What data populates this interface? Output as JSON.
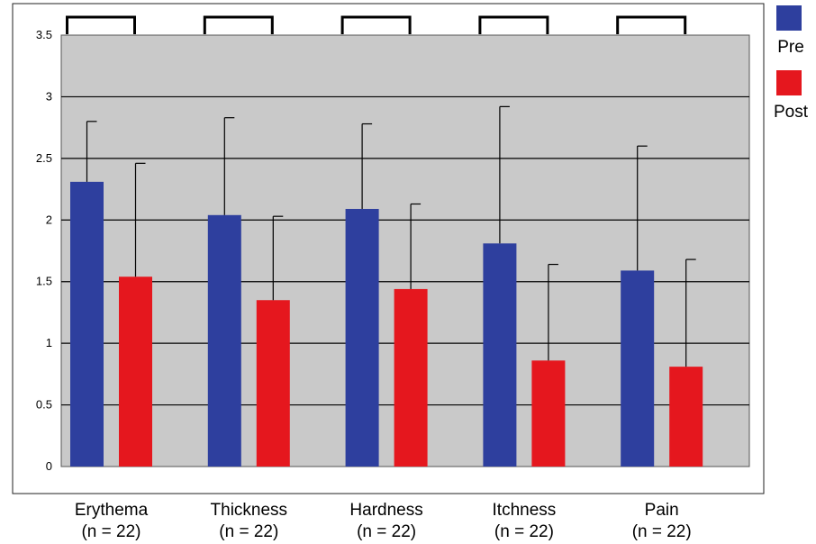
{
  "chart_data": {
    "type": "bar",
    "title": "",
    "xlabel": "",
    "ylabel": "",
    "categories": [
      "Erythema",
      "Thickness",
      "Hardness",
      "Itchness",
      "Pain"
    ],
    "category_notes": [
      "(n = 22)",
      "(n = 22)",
      "(n = 22)",
      "(n = 22)",
      "(n = 22)"
    ],
    "series": [
      {
        "name": "Pre",
        "color": "#2e3f9e",
        "values": [
          2.31,
          2.04,
          2.09,
          1.81,
          1.59
        ],
        "error": [
          0.49,
          0.79,
          0.69,
          1.11,
          1.01
        ]
      },
      {
        "name": "Post",
        "color": "#e5171e",
        "values": [
          1.54,
          1.35,
          1.44,
          0.86,
          0.81
        ],
        "error": [
          0.92,
          0.68,
          0.69,
          0.78,
          0.87
        ]
      }
    ],
    "ylim": [
      0,
      3.5
    ],
    "yticks": [
      "0",
      "0.5",
      "1",
      "1.5",
      "2",
      "2.5",
      "3",
      "3.5"
    ],
    "grid": true,
    "plot_background": "#c9c9c9",
    "significance_brackets": true,
    "legend_position": "right"
  }
}
